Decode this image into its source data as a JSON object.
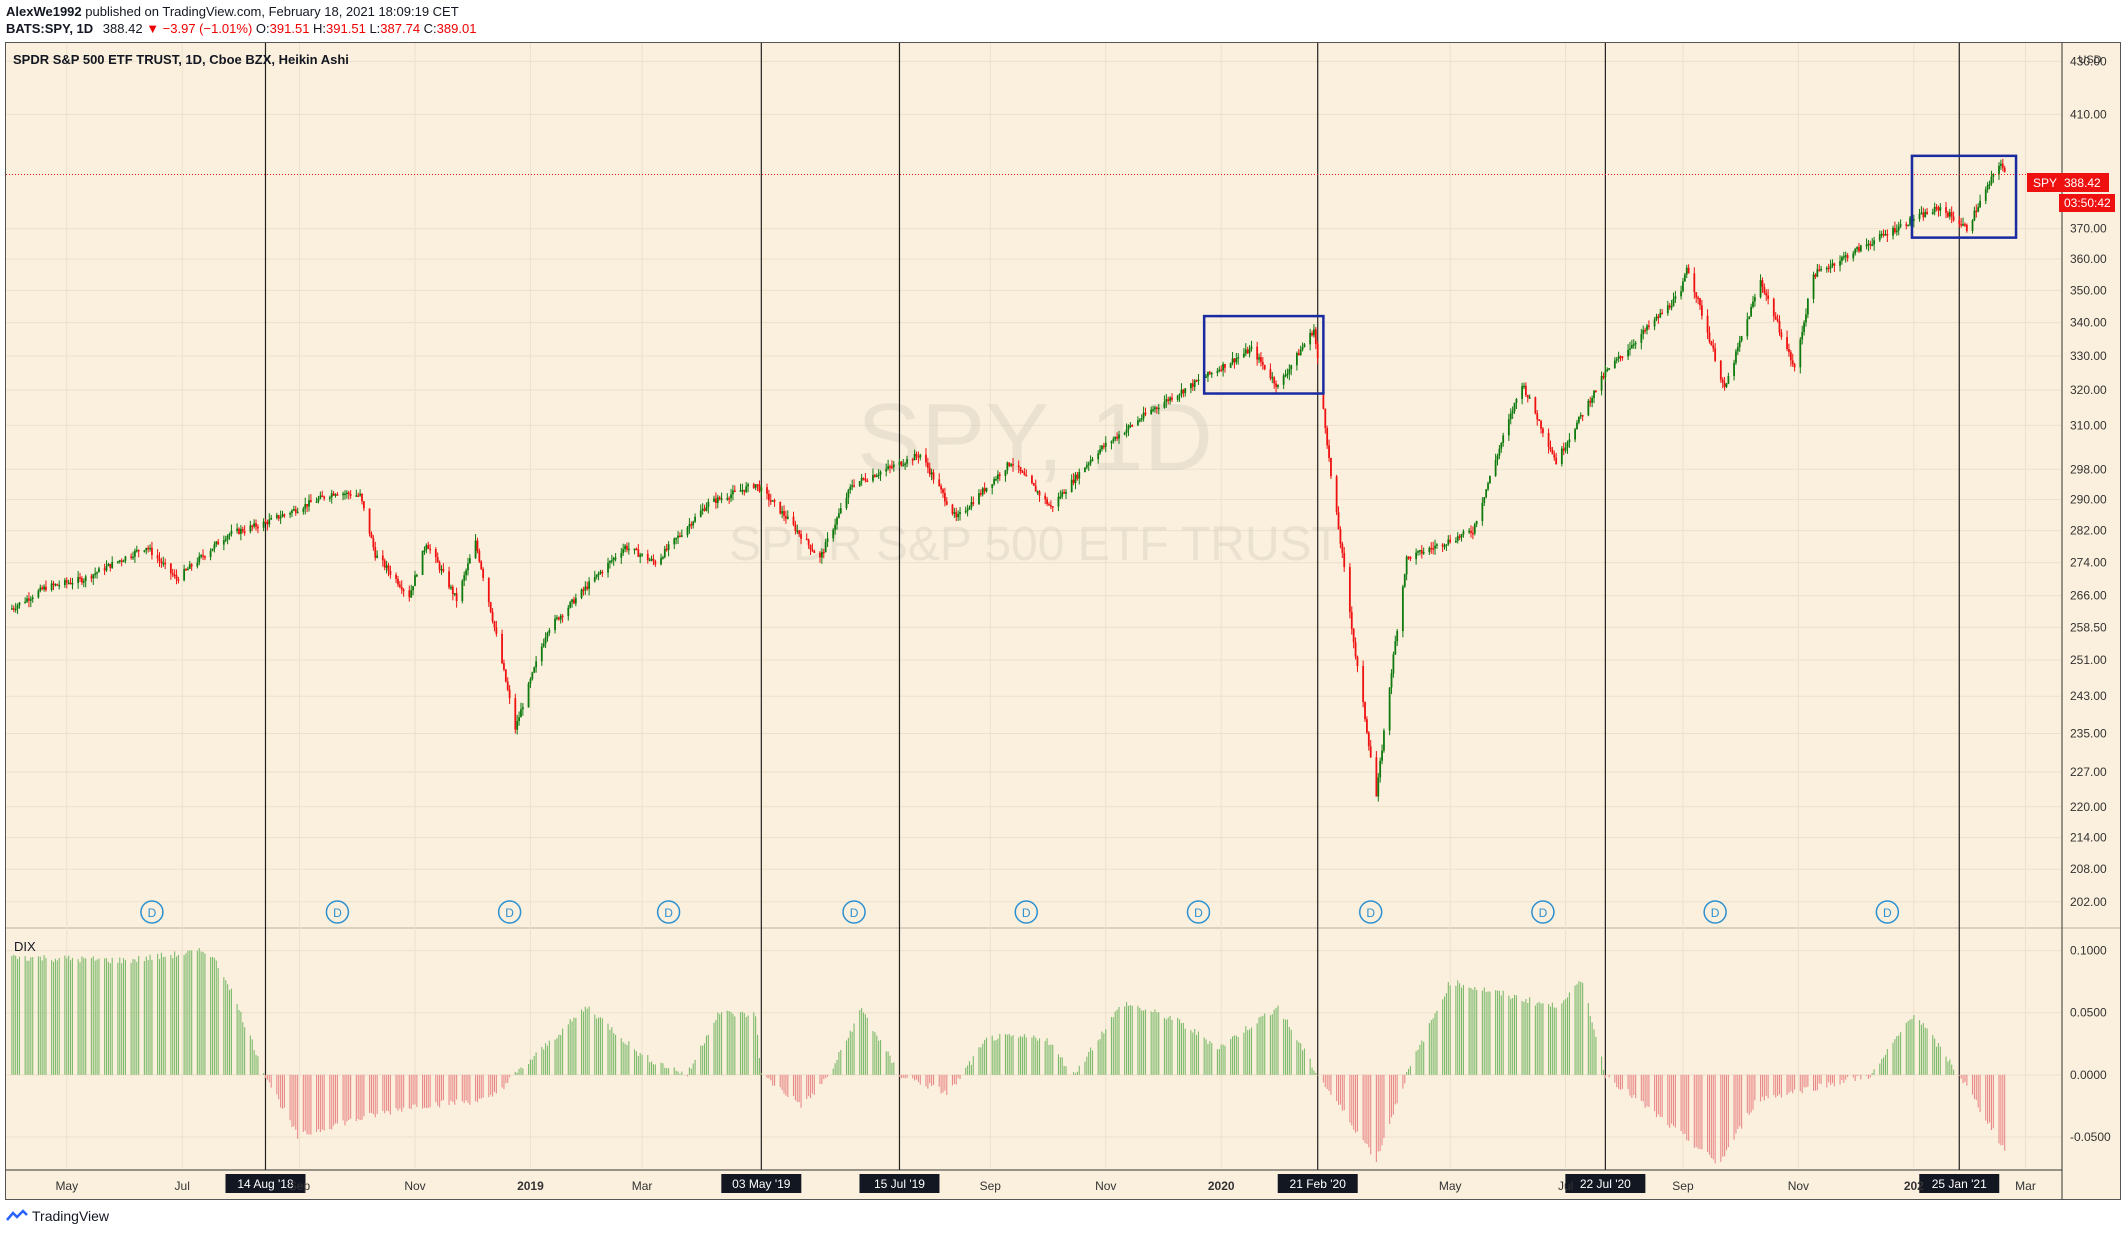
{
  "header": {
    "line1_user": "AlexWe1992",
    "line1_rest": "published on TradingView.com, February 18, 2021 18:09:19 CET",
    "symbol": "BATS:SPY, 1D",
    "last": "388.42",
    "change": "▼ −3.97 (−1.01%)",
    "o_label": "O:",
    "o": "391.51",
    "h_label": "H:",
    "h": "391.51",
    "l_label": "L:",
    "l": "387.74",
    "c_label": "C:",
    "c": "389.01"
  },
  "chart_title": "SPDR S&P 500 ETF TRUST, 1D, Cboe BZX, Heikin Ashi",
  "watermark_symbol": "SPY, 1D",
  "watermark_name": "SPDR S&P 500 ETF TRUST",
  "currency": "USD",
  "price_tag": {
    "symbol": "SPY",
    "price": "388.42",
    "countdown": "03:50:42"
  },
  "indicator_label": "DIX",
  "footer_brand": "TradingView",
  "dividend_marker": "D",
  "colors": {
    "bg": "#fbf0dd",
    "up": "#0e7a0e",
    "down": "#ef1010",
    "dix_up": "#7cba6c",
    "dix_down": "#e98a8a",
    "box": "#1a2aa0"
  },
  "chart_data": [
    {
      "type": "candlestick",
      "title": "SPDR S&P 500 ETF TRUST, 1D, Cboe BZX, Heikin Ashi",
      "ylabel": "USD",
      "y_scale": "log",
      "ylim": [
        198,
        436
      ],
      "y_ticks": [
        "430.00",
        "410.00",
        "370.00",
        "360.00",
        "350.00",
        "340.00",
        "330.00",
        "320.00",
        "310.00",
        "298.00",
        "290.00",
        "282.00",
        "274.00",
        "266.00",
        "258.50",
        "251.00",
        "243.00",
        "235.00",
        "227.00",
        "220.00",
        "214.00",
        "208.00",
        "202.00"
      ],
      "x_ticks": [
        "May",
        "Jul",
        "Sep",
        "Nov",
        "2019",
        "Mar",
        "Sep",
        "Nov",
        "2020",
        "May",
        "Jul",
        "Sep",
        "Nov",
        "202",
        "Mar"
      ],
      "x_range": [
        "2018-04-01",
        "2021-03-15"
      ],
      "vertical_markers": [
        "14 Aug '18",
        "03 May '19",
        "15 Jul '19",
        "21 Feb '20",
        "22 Jul '20",
        "25 Jan '21"
      ],
      "dividend_dates": [
        "2018-06-15",
        "2018-09-21",
        "2018-12-21",
        "2019-03-15",
        "2019-06-21",
        "2019-09-20",
        "2019-12-20",
        "2020-03-20",
        "2020-06-19",
        "2020-09-18",
        "2020-12-18"
      ],
      "highlight_boxes": [
        {
          "from": "2019-12-23",
          "to": "2020-02-24",
          "low": 319,
          "high": 342
        },
        {
          "from": "2020-12-31",
          "to": "2021-02-24",
          "low": 367,
          "high": 395
        }
      ],
      "last_price": 388.42,
      "series_anchors": [
        [
          "2018-04-02",
          263
        ],
        [
          "2018-04-20",
          268
        ],
        [
          "2018-05-10",
          270
        ],
        [
          "2018-06-12",
          278
        ],
        [
          "2018-06-28",
          270
        ],
        [
          "2018-07-25",
          281
        ],
        [
          "2018-08-14",
          284
        ],
        [
          "2018-09-20",
          292
        ],
        [
          "2018-10-03",
          291
        ],
        [
          "2018-10-11",
          276
        ],
        [
          "2018-10-29",
          266
        ],
        [
          "2018-11-07",
          279
        ],
        [
          "2018-11-23",
          265
        ],
        [
          "2018-12-03",
          279
        ],
        [
          "2018-12-24",
          236
        ],
        [
          "2019-01-10",
          258
        ],
        [
          "2019-02-20",
          278
        ],
        [
          "2019-03-08",
          274
        ],
        [
          "2019-04-05",
          289
        ],
        [
          "2019-04-30",
          294
        ],
        [
          "2019-05-15",
          286
        ],
        [
          "2019-06-03",
          275
        ],
        [
          "2019-06-20",
          294
        ],
        [
          "2019-07-26",
          302
        ],
        [
          "2019-08-14",
          285
        ],
        [
          "2019-09-12",
          300
        ],
        [
          "2019-10-03",
          288
        ],
        [
          "2019-10-28",
          303
        ],
        [
          "2019-11-27",
          315
        ],
        [
          "2020-01-17",
          332
        ],
        [
          "2020-01-31",
          321
        ],
        [
          "2020-02-19",
          338
        ],
        [
          "2020-02-28",
          296
        ],
        [
          "2020-03-12",
          252
        ],
        [
          "2020-03-23",
          222
        ],
        [
          "2020-04-08",
          275
        ],
        [
          "2020-05-13",
          282
        ],
        [
          "2020-06-08",
          322
        ],
        [
          "2020-06-26",
          300
        ],
        [
          "2020-07-22",
          325
        ],
        [
          "2020-08-31",
          349
        ],
        [
          "2020-09-03",
          358
        ],
        [
          "2020-09-23",
          320
        ],
        [
          "2020-10-12",
          353
        ],
        [
          "2020-10-30",
          326
        ],
        [
          "2020-11-09",
          355
        ],
        [
          "2020-12-31",
          373
        ],
        [
          "2021-01-15",
          377
        ],
        [
          "2021-01-29",
          370
        ],
        [
          "2021-02-16",
          393
        ],
        [
          "2021-02-18",
          388.42
        ]
      ]
    },
    {
      "type": "area",
      "title": "DIX",
      "ylim": [
        -0.075,
        0.115
      ],
      "y_ticks": [
        "0.1000",
        "0.0500",
        "0.0000",
        "-0.0500"
      ],
      "series_anchors": [
        [
          "2018-04-02",
          0.095
        ],
        [
          "2018-06-01",
          0.092
        ],
        [
          "2018-07-15",
          0.1
        ],
        [
          "2018-07-25",
          0.075
        ],
        [
          "2018-08-14",
          0.0
        ],
        [
          "2018-08-31",
          -0.05
        ],
        [
          "2018-09-20",
          -0.04
        ],
        [
          "2018-10-31",
          -0.025
        ],
        [
          "2018-12-10",
          -0.02
        ],
        [
          "2018-12-24",
          0.0
        ],
        [
          "2019-01-31",
          0.055
        ],
        [
          "2019-03-01",
          0.015
        ],
        [
          "2019-03-25",
          0.0
        ],
        [
          "2019-04-10",
          0.05
        ],
        [
          "2019-04-30",
          0.048
        ],
        [
          "2019-05-03",
          0.0
        ],
        [
          "2019-05-25",
          -0.025
        ],
        [
          "2019-06-08",
          0.0
        ],
        [
          "2019-06-25",
          0.053
        ],
        [
          "2019-07-15",
          0.0
        ],
        [
          "2019-08-10",
          -0.015
        ],
        [
          "2019-08-31",
          0.03
        ],
        [
          "2019-09-30",
          0.03
        ],
        [
          "2019-10-15",
          0.0
        ],
        [
          "2019-11-10",
          0.058
        ],
        [
          "2019-12-07",
          0.045
        ],
        [
          "2019-12-31",
          0.022
        ],
        [
          "2020-01-31",
          0.055
        ],
        [
          "2020-02-21",
          0.0
        ],
        [
          "2020-03-23",
          -0.068
        ],
        [
          "2020-04-08",
          0.0
        ],
        [
          "2020-05-01",
          0.075
        ],
        [
          "2020-06-25",
          0.055
        ],
        [
          "2020-07-10",
          0.075
        ],
        [
          "2020-07-22",
          0.0
        ],
        [
          "2020-09-20",
          -0.072
        ],
        [
          "2020-10-10",
          -0.02
        ],
        [
          "2020-12-10",
          0.0
        ],
        [
          "2021-01-01",
          0.05
        ],
        [
          "2021-01-25",
          0.0
        ],
        [
          "2021-02-18",
          -0.06
        ]
      ]
    }
  ]
}
